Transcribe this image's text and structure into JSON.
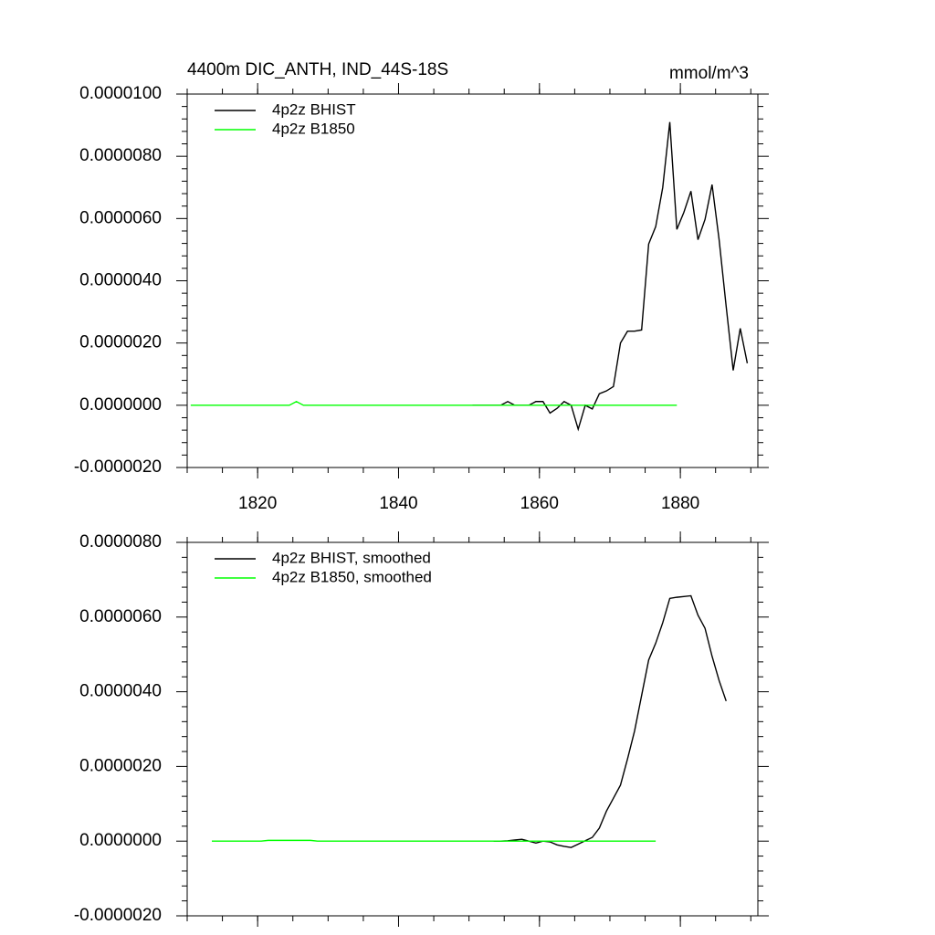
{
  "chart_data": [
    {
      "type": "line",
      "title": "4400m DIC_ANTH, IND_44S-18S",
      "units": "mmol/m^3",
      "xlim": [
        1810,
        1891
      ],
      "xticks": [
        1820,
        1840,
        1860,
        1880
      ],
      "ylim": [
        -2e-06,
        1e-05
      ],
      "yticks": [
        {
          "value": -2e-06,
          "label": "-0.0000020"
        },
        {
          "value": 0,
          "label": "0.0000000"
        },
        {
          "value": 2e-06,
          "label": "0.0000020"
        },
        {
          "value": 4e-06,
          "label": "0.0000040"
        },
        {
          "value": 6e-06,
          "label": "0.0000060"
        },
        {
          "value": 8e-06,
          "label": "0.0000080"
        },
        {
          "value": 1e-05,
          "label": "0.0000100"
        }
      ],
      "series": [
        {
          "name": "4p2z BHIST",
          "color": "#000000",
          "x": [
            1850.5,
            1851.5,
            1852.5,
            1853.5,
            1854.5,
            1855.5,
            1856.5,
            1857.5,
            1858.5,
            1859.5,
            1860.5,
            1861.5,
            1862.5,
            1863.5,
            1864.5,
            1865.5,
            1866.5,
            1867.5,
            1868.5,
            1869.5,
            1870.5,
            1871.5,
            1872.5,
            1873.5,
            1874.5,
            1875.5,
            1876.5,
            1877.5,
            1878.5,
            1879.5,
            1880.5,
            1881.5,
            1882.5,
            1883.5,
            1884.5,
            1885.5,
            1886.5,
            1887.5,
            1888.5,
            1889.5
          ],
          "values": [
            0,
            0,
            0,
            0,
            0,
            1.2e-07,
            0,
            0,
            0,
            1.2e-07,
            1.2e-07,
            -2.5e-07,
            -1e-07,
            1.2e-07,
            0,
            -7.7e-07,
            0,
            -1.2e-07,
            3.7e-07,
            4.6e-07,
            6e-07,
            2e-06,
            2.38e-06,
            2.38e-06,
            2.42e-06,
            5.18e-06,
            5.74e-06,
            7e-06,
            9.1e-06,
            5.65e-06,
            6.2e-06,
            6.88e-06,
            5.32e-06,
            5.97e-06,
            7.09e-06,
            5.32e-06,
            3.18e-06,
            1.12e-06,
            2.47e-06,
            1.35e-06
          ]
        },
        {
          "name": "4p2z B1850",
          "color": "#00ff00",
          "x": [
            1810.5,
            1811.5,
            1812.5,
            1813.5,
            1814.5,
            1815.5,
            1816.5,
            1817.5,
            1818.5,
            1819.5,
            1820.5,
            1821.5,
            1822.5,
            1823.5,
            1824.5,
            1825.5,
            1826.5,
            1827.5,
            1828.5,
            1829.5,
            1830.5,
            1831.5,
            1832.5,
            1833.5,
            1834.5,
            1835.5,
            1836.5,
            1837.5,
            1838.5,
            1839.5,
            1840.5,
            1841.5,
            1842.5,
            1843.5,
            1844.5,
            1845.5,
            1846.5,
            1847.5,
            1848.5,
            1849.5,
            1850.5,
            1851.5,
            1852.5,
            1853.5,
            1854.5,
            1855.5,
            1856.5,
            1857.5,
            1858.5,
            1859.5,
            1860.5,
            1861.5,
            1862.5,
            1863.5,
            1864.5,
            1865.5,
            1866.5,
            1867.5,
            1868.5,
            1869.5,
            1870.5,
            1871.5,
            1872.5,
            1873.5,
            1874.5,
            1875.5,
            1876.5,
            1877.5,
            1878.5,
            1879.5
          ],
          "values": [
            0,
            0,
            0,
            0,
            0,
            0,
            0,
            0,
            0,
            0,
            0,
            0,
            0,
            0,
            0,
            1.2e-07,
            0,
            0,
            0,
            0,
            0,
            0,
            0,
            0,
            0,
            0,
            0,
            0,
            0,
            0,
            0,
            0,
            0,
            0,
            0,
            0,
            0,
            0,
            0,
            0,
            0,
            0,
            0,
            0,
            0,
            0,
            0,
            0,
            0,
            0,
            0,
            0,
            0,
            0,
            0,
            0,
            0,
            0,
            0,
            0,
            0,
            0,
            0,
            0,
            0,
            0,
            0,
            0,
            0,
            0
          ]
        }
      ]
    },
    {
      "type": "line",
      "xlim": [
        1810,
        1891
      ],
      "xticks": [
        1820,
        1840,
        1860,
        1880
      ],
      "ylim": [
        -2e-06,
        8e-06
      ],
      "yticks": [
        {
          "value": -2e-06,
          "label": "-0.0000020"
        },
        {
          "value": 0,
          "label": "0.0000000"
        },
        {
          "value": 2e-06,
          "label": "0.0000020"
        },
        {
          "value": 4e-06,
          "label": "0.0000040"
        },
        {
          "value": 6e-06,
          "label": "0.0000060"
        },
        {
          "value": 8e-06,
          "label": "0.0000080"
        }
      ],
      "series": [
        {
          "name": "4p2z BHIST, smoothed",
          "color": "#000000",
          "x": [
            1853.5,
            1854.5,
            1855.5,
            1856.5,
            1857.5,
            1858.5,
            1859.5,
            1860.5,
            1861.5,
            1862.5,
            1863.5,
            1864.5,
            1865.5,
            1866.5,
            1867.5,
            1868.5,
            1869.5,
            1870.5,
            1871.5,
            1872.5,
            1873.5,
            1874.5,
            1875.5,
            1876.5,
            1877.5,
            1878.5,
            1879.5,
            1880.5,
            1881.5,
            1882.5,
            1883.5,
            1884.5,
            1885.5,
            1886.5
          ],
          "values": [
            0,
            0,
            1e-08,
            3e-08,
            5e-08,
            0,
            -5e-08,
            0,
            -2e-08,
            -1e-07,
            -1.4e-07,
            -1.7e-07,
            -8e-08,
            1e-08,
            1e-07,
            3.5e-07,
            8e-07,
            1.15e-06,
            1.5e-06,
            2.2e-06,
            2.95e-06,
            3.9e-06,
            4.85e-06,
            5.3e-06,
            5.85e-06,
            6.5e-06,
            6.53e-06,
            6.55e-06,
            6.57e-06,
            6.05e-06,
            5.7e-06,
            4.95e-06,
            4.3e-06,
            3.75e-06
          ]
        },
        {
          "name": "4p2z B1850, smoothed",
          "color": "#00ff00",
          "x": [
            1813.5,
            1814.5,
            1815.5,
            1816.5,
            1817.5,
            1818.5,
            1819.5,
            1820.5,
            1821.5,
            1822.5,
            1823.5,
            1824.5,
            1825.5,
            1826.5,
            1827.5,
            1828.5,
            1829.5,
            1830.5,
            1831.5,
            1832.5,
            1833.5,
            1834.5,
            1835.5,
            1836.5,
            1837.5,
            1838.5,
            1839.5,
            1840.5,
            1841.5,
            1842.5,
            1843.5,
            1844.5,
            1845.5,
            1846.5,
            1847.5,
            1848.5,
            1849.5,
            1850.5,
            1851.5,
            1852.5,
            1853.5,
            1854.5,
            1855.5,
            1856.5,
            1857.5,
            1858.5,
            1859.5,
            1860.5,
            1861.5,
            1862.5,
            1863.5,
            1864.5,
            1865.5,
            1866.5,
            1867.5,
            1868.5,
            1869.5,
            1870.5,
            1871.5,
            1872.5,
            1873.5,
            1874.5,
            1875.5,
            1876.5
          ],
          "values": [
            0,
            0,
            0,
            0,
            0,
            0,
            0,
            0,
            2e-08,
            2e-08,
            2e-08,
            2e-08,
            2e-08,
            2e-08,
            2e-08,
            0,
            0,
            0,
            0,
            0,
            0,
            0,
            0,
            0,
            0,
            0,
            0,
            0,
            0,
            0,
            0,
            0,
            0,
            0,
            0,
            0,
            0,
            0,
            0,
            0,
            0,
            0,
            0,
            0,
            0,
            0,
            0,
            0,
            0,
            0,
            0,
            0,
            0,
            0,
            0,
            0,
            0,
            0,
            0,
            0,
            0,
            0,
            0,
            0
          ]
        }
      ]
    }
  ]
}
